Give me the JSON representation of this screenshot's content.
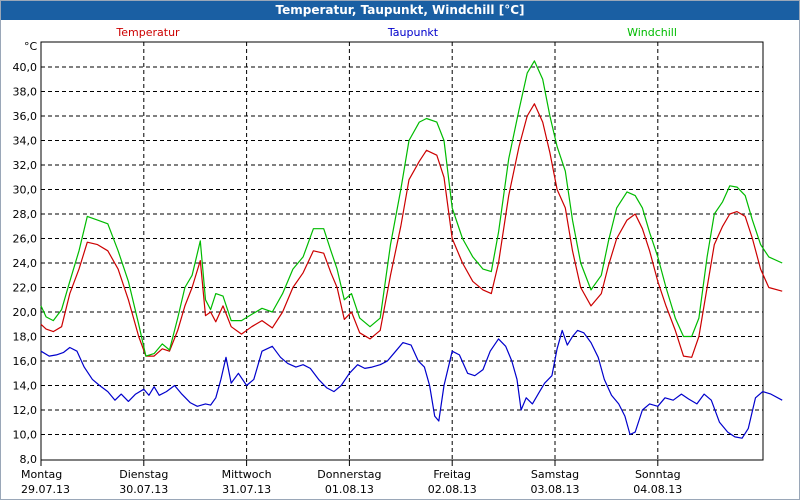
{
  "window": {
    "title": "Temperatur, Taupunkt, Windchill [°C]"
  },
  "chart_data": {
    "type": "line",
    "ylabel": "°C",
    "ylim": [
      8,
      42
    ],
    "yticks": [
      "8,0",
      "10,0",
      "12,0",
      "14,0",
      "16,0",
      "18,0",
      "20,0",
      "22,0",
      "24,0",
      "26,0",
      "28,0",
      "30,0",
      "32,0",
      "34,0",
      "36,0",
      "38,0",
      "40,0"
    ],
    "xlim": [
      0,
      7.21
    ],
    "grid": true,
    "day_labels": [
      {
        "day": "Montag",
        "date": "29.07.13"
      },
      {
        "day": "Dienstag",
        "date": "30.07.13"
      },
      {
        "day": "Mittwoch",
        "date": "31.07.13"
      },
      {
        "day": "Donnerstag",
        "date": "01.08.13"
      },
      {
        "day": "Freitag",
        "date": "02.08.13"
      },
      {
        "day": "Samstag",
        "date": "03.08.13"
      },
      {
        "day": "Sonntag",
        "date": "04.08.13"
      }
    ],
    "legend_placement": "top",
    "series": [
      {
        "name": "Temperatur",
        "color": "#cc0000",
        "points": [
          [
            0.0,
            19.0
          ],
          [
            0.05,
            18.6
          ],
          [
            0.12,
            18.4
          ],
          [
            0.2,
            18.8
          ],
          [
            0.28,
            21.5
          ],
          [
            0.37,
            23.5
          ],
          [
            0.45,
            25.7
          ],
          [
            0.55,
            25.5
          ],
          [
            0.65,
            25.0
          ],
          [
            0.75,
            23.5
          ],
          [
            0.85,
            21.0
          ],
          [
            0.95,
            18.0
          ],
          [
            1.02,
            16.4
          ],
          [
            1.1,
            16.4
          ],
          [
            1.18,
            17.0
          ],
          [
            1.25,
            16.8
          ],
          [
            1.33,
            18.5
          ],
          [
            1.4,
            20.5
          ],
          [
            1.47,
            22.0
          ],
          [
            1.55,
            24.2
          ],
          [
            1.6,
            19.7
          ],
          [
            1.65,
            20.0
          ],
          [
            1.7,
            19.2
          ],
          [
            1.77,
            20.5
          ],
          [
            1.85,
            18.8
          ],
          [
            1.95,
            18.2
          ],
          [
            2.05,
            18.8
          ],
          [
            2.15,
            19.3
          ],
          [
            2.25,
            18.7
          ],
          [
            2.35,
            20.0
          ],
          [
            2.45,
            22.0
          ],
          [
            2.55,
            23.2
          ],
          [
            2.65,
            25.0
          ],
          [
            2.75,
            24.8
          ],
          [
            2.82,
            23.2
          ],
          [
            2.88,
            22.0
          ],
          [
            2.95,
            19.4
          ],
          [
            3.02,
            20.0
          ],
          [
            3.1,
            18.3
          ],
          [
            3.2,
            17.8
          ],
          [
            3.3,
            18.5
          ],
          [
            3.4,
            23.0
          ],
          [
            3.5,
            27.0
          ],
          [
            3.58,
            30.8
          ],
          [
            3.68,
            32.3
          ],
          [
            3.75,
            33.2
          ],
          [
            3.85,
            32.8
          ],
          [
            3.92,
            31.0
          ],
          [
            4.0,
            26.0
          ],
          [
            4.1,
            24.0
          ],
          [
            4.2,
            22.5
          ],
          [
            4.3,
            21.8
          ],
          [
            4.38,
            21.5
          ],
          [
            4.45,
            24.0
          ],
          [
            4.55,
            29.5
          ],
          [
            4.65,
            33.5
          ],
          [
            4.73,
            36.0
          ],
          [
            4.8,
            37.0
          ],
          [
            4.88,
            35.5
          ],
          [
            4.95,
            33.0
          ],
          [
            5.02,
            30.0
          ],
          [
            5.1,
            28.5
          ],
          [
            5.17,
            25.0
          ],
          [
            5.25,
            22.0
          ],
          [
            5.35,
            20.5
          ],
          [
            5.45,
            21.5
          ],
          [
            5.52,
            23.8
          ],
          [
            5.6,
            26.0
          ],
          [
            5.7,
            27.5
          ],
          [
            5.78,
            28.0
          ],
          [
            5.85,
            26.8
          ],
          [
            5.92,
            25.0
          ],
          [
            6.0,
            22.5
          ],
          [
            6.08,
            20.5
          ],
          [
            6.17,
            18.5
          ],
          [
            6.25,
            16.4
          ],
          [
            6.33,
            16.3
          ],
          [
            6.4,
            18.0
          ],
          [
            6.48,
            22.0
          ],
          [
            6.55,
            25.5
          ],
          [
            6.63,
            27.0
          ],
          [
            6.7,
            28.0
          ],
          [
            6.77,
            28.2
          ],
          [
            6.85,
            27.8
          ],
          [
            6.92,
            26.0
          ],
          [
            7.0,
            23.5
          ],
          [
            7.08,
            22.0
          ],
          [
            7.21,
            21.7
          ]
        ]
      },
      {
        "name": "Taupunkt",
        "color": "#0000cc",
        "points": [
          [
            0.0,
            16.8
          ],
          [
            0.08,
            16.4
          ],
          [
            0.15,
            16.5
          ],
          [
            0.22,
            16.7
          ],
          [
            0.28,
            17.1
          ],
          [
            0.35,
            16.8
          ],
          [
            0.42,
            15.5
          ],
          [
            0.5,
            14.5
          ],
          [
            0.57,
            14.0
          ],
          [
            0.65,
            13.5
          ],
          [
            0.72,
            12.8
          ],
          [
            0.78,
            13.3
          ],
          [
            0.85,
            12.7
          ],
          [
            0.92,
            13.3
          ],
          [
            1.0,
            13.7
          ],
          [
            1.05,
            13.2
          ],
          [
            1.1,
            13.9
          ],
          [
            1.15,
            13.2
          ],
          [
            1.22,
            13.5
          ],
          [
            1.3,
            14.0
          ],
          [
            1.37,
            13.3
          ],
          [
            1.45,
            12.6
          ],
          [
            1.52,
            12.3
          ],
          [
            1.6,
            12.5
          ],
          [
            1.65,
            12.4
          ],
          [
            1.7,
            13.0
          ],
          [
            1.75,
            14.5
          ],
          [
            1.8,
            16.3
          ],
          [
            1.85,
            14.2
          ],
          [
            1.92,
            15.0
          ],
          [
            2.0,
            14.0
          ],
          [
            2.07,
            14.5
          ],
          [
            2.15,
            16.8
          ],
          [
            2.25,
            17.2
          ],
          [
            2.33,
            16.3
          ],
          [
            2.4,
            15.8
          ],
          [
            2.48,
            15.5
          ],
          [
            2.55,
            15.7
          ],
          [
            2.62,
            15.4
          ],
          [
            2.7,
            14.5
          ],
          [
            2.78,
            13.8
          ],
          [
            2.85,
            13.5
          ],
          [
            2.92,
            14.0
          ],
          [
            3.0,
            15.0
          ],
          [
            3.08,
            15.7
          ],
          [
            3.15,
            15.4
          ],
          [
            3.22,
            15.5
          ],
          [
            3.3,
            15.7
          ],
          [
            3.37,
            16.0
          ],
          [
            3.45,
            16.8
          ],
          [
            3.52,
            17.5
          ],
          [
            3.6,
            17.3
          ],
          [
            3.67,
            16.0
          ],
          [
            3.73,
            15.5
          ],
          [
            3.78,
            14.0
          ],
          [
            3.83,
            11.5
          ],
          [
            3.87,
            11.1
          ],
          [
            3.92,
            14.0
          ],
          [
            4.0,
            16.8
          ],
          [
            4.07,
            16.5
          ],
          [
            4.15,
            15.0
          ],
          [
            4.22,
            14.8
          ],
          [
            4.3,
            15.3
          ],
          [
            4.37,
            16.8
          ],
          [
            4.45,
            17.8
          ],
          [
            4.52,
            17.2
          ],
          [
            4.58,
            16.0
          ],
          [
            4.63,
            14.5
          ],
          [
            4.67,
            12.0
          ],
          [
            4.72,
            13.0
          ],
          [
            4.78,
            12.5
          ],
          [
            4.85,
            13.5
          ],
          [
            4.9,
            14.2
          ],
          [
            4.97,
            14.8
          ],
          [
            5.02,
            17.0
          ],
          [
            5.07,
            18.5
          ],
          [
            5.12,
            17.3
          ],
          [
            5.17,
            18.0
          ],
          [
            5.22,
            18.5
          ],
          [
            5.28,
            18.3
          ],
          [
            5.35,
            17.5
          ],
          [
            5.42,
            16.3
          ],
          [
            5.48,
            14.5
          ],
          [
            5.55,
            13.2
          ],
          [
            5.62,
            12.5
          ],
          [
            5.68,
            11.5
          ],
          [
            5.73,
            10.0
          ],
          [
            5.78,
            10.2
          ],
          [
            5.85,
            12.0
          ],
          [
            5.92,
            12.5
          ],
          [
            6.0,
            12.3
          ],
          [
            6.07,
            13.0
          ],
          [
            6.15,
            12.8
          ],
          [
            6.23,
            13.3
          ],
          [
            6.3,
            12.9
          ],
          [
            6.38,
            12.5
          ],
          [
            6.45,
            13.3
          ],
          [
            6.52,
            12.8
          ],
          [
            6.6,
            11.0
          ],
          [
            6.68,
            10.2
          ],
          [
            6.75,
            9.8
          ],
          [
            6.82,
            9.7
          ],
          [
            6.88,
            10.5
          ],
          [
            6.95,
            13.0
          ],
          [
            7.02,
            13.5
          ],
          [
            7.1,
            13.3
          ],
          [
            7.21,
            12.8
          ]
        ]
      },
      {
        "name": "Windchill",
        "color": "#00bb00",
        "points": [
          [
            0.0,
            20.5
          ],
          [
            0.05,
            19.6
          ],
          [
            0.12,
            19.3
          ],
          [
            0.2,
            20.2
          ],
          [
            0.28,
            22.5
          ],
          [
            0.37,
            25.0
          ],
          [
            0.45,
            27.8
          ],
          [
            0.55,
            27.5
          ],
          [
            0.65,
            27.2
          ],
          [
            0.75,
            25.0
          ],
          [
            0.85,
            22.5
          ],
          [
            0.95,
            19.0
          ],
          [
            1.02,
            16.4
          ],
          [
            1.1,
            16.6
          ],
          [
            1.18,
            17.4
          ],
          [
            1.25,
            16.9
          ],
          [
            1.33,
            19.5
          ],
          [
            1.4,
            22.0
          ],
          [
            1.47,
            23.0
          ],
          [
            1.55,
            25.8
          ],
          [
            1.6,
            21.0
          ],
          [
            1.65,
            20.2
          ],
          [
            1.7,
            21.5
          ],
          [
            1.77,
            21.3
          ],
          [
            1.85,
            19.3
          ],
          [
            1.95,
            19.3
          ],
          [
            2.05,
            19.8
          ],
          [
            2.15,
            20.3
          ],
          [
            2.25,
            20.0
          ],
          [
            2.35,
            21.5
          ],
          [
            2.45,
            23.5
          ],
          [
            2.55,
            24.5
          ],
          [
            2.65,
            26.8
          ],
          [
            2.75,
            26.8
          ],
          [
            2.82,
            25.0
          ],
          [
            2.88,
            23.5
          ],
          [
            2.95,
            21.0
          ],
          [
            3.02,
            21.5
          ],
          [
            3.1,
            19.5
          ],
          [
            3.2,
            18.8
          ],
          [
            3.3,
            19.5
          ],
          [
            3.4,
            25.5
          ],
          [
            3.5,
            30.0
          ],
          [
            3.58,
            34.0
          ],
          [
            3.68,
            35.5
          ],
          [
            3.75,
            35.8
          ],
          [
            3.85,
            35.5
          ],
          [
            3.92,
            34.0
          ],
          [
            4.0,
            28.5
          ],
          [
            4.1,
            26.0
          ],
          [
            4.2,
            24.5
          ],
          [
            4.3,
            23.5
          ],
          [
            4.38,
            23.3
          ],
          [
            4.45,
            26.5
          ],
          [
            4.55,
            32.5
          ],
          [
            4.65,
            36.5
          ],
          [
            4.73,
            39.5
          ],
          [
            4.8,
            40.5
          ],
          [
            4.88,
            39.0
          ],
          [
            4.95,
            36.0
          ],
          [
            5.02,
            33.5
          ],
          [
            5.1,
            31.5
          ],
          [
            5.17,
            27.5
          ],
          [
            5.25,
            24.0
          ],
          [
            5.35,
            21.8
          ],
          [
            5.45,
            23.0
          ],
          [
            5.52,
            25.8
          ],
          [
            5.6,
            28.5
          ],
          [
            5.7,
            29.8
          ],
          [
            5.78,
            29.5
          ],
          [
            5.85,
            28.5
          ],
          [
            5.92,
            26.5
          ],
          [
            6.0,
            24.5
          ],
          [
            6.08,
            22.0
          ],
          [
            6.17,
            19.5
          ],
          [
            6.25,
            18.0
          ],
          [
            6.33,
            18.0
          ],
          [
            6.4,
            19.5
          ],
          [
            6.48,
            24.5
          ],
          [
            6.55,
            28.0
          ],
          [
            6.63,
            29.0
          ],
          [
            6.7,
            30.3
          ],
          [
            6.77,
            30.2
          ],
          [
            6.85,
            29.5
          ],
          [
            6.92,
            27.5
          ],
          [
            7.0,
            25.5
          ],
          [
            7.08,
            24.5
          ],
          [
            7.21,
            24.0
          ]
        ]
      }
    ]
  }
}
